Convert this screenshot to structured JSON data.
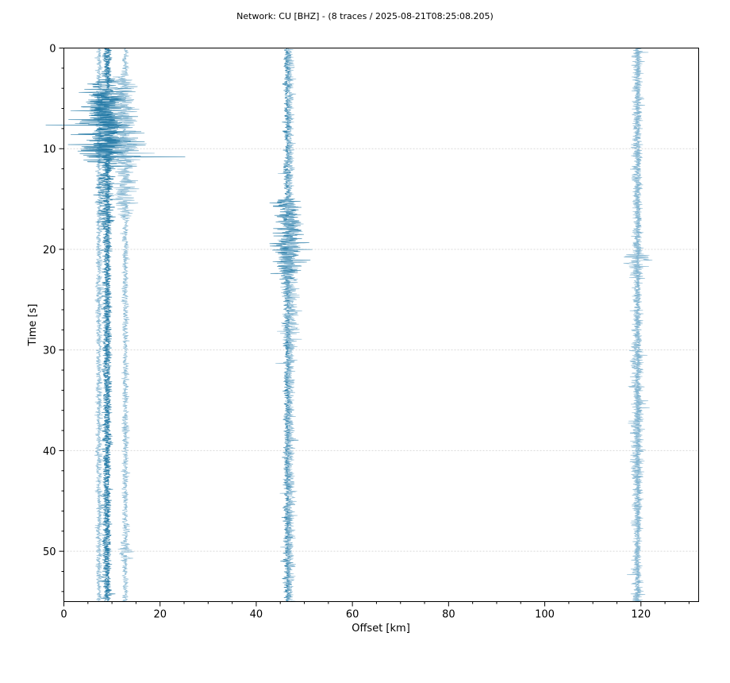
{
  "chart_data": {
    "type": "line",
    "title": "Network: CU [BHZ] - (8 traces / 2025-08-21T08:25:08.205)",
    "xlabel": "Offset [km]",
    "ylabel": "Time [s]",
    "xlim": [
      0,
      132
    ],
    "ylim": [
      55,
      0
    ],
    "y_inverted": true,
    "grid": "horizontal dashed at major y ticks",
    "xticks": [
      0,
      20,
      40,
      60,
      80,
      100,
      120
    ],
    "yticks": [
      0,
      10,
      20,
      30,
      40,
      50
    ],
    "colors": {
      "dark": "#1f77a4",
      "light": "#7fb3cf"
    },
    "series": [
      {
        "offset_km": 7.3,
        "color": "light",
        "amp": 1.0,
        "bursts": []
      },
      {
        "offset_km": 8.8,
        "color": "dark",
        "amp": 1.2,
        "bursts": [
          [
            3,
            12,
            9.5
          ],
          [
            12,
            18,
            3.2
          ]
        ]
      },
      {
        "offset_km": 9.2,
        "color": "dark",
        "amp": 1.1,
        "bursts": [
          [
            4,
            11,
            6
          ]
        ]
      },
      {
        "offset_km": 12.8,
        "color": "light",
        "amp": 1.0,
        "bursts": [
          [
            2.5,
            17,
            3.5
          ],
          [
            49,
            51,
            3
          ]
        ]
      },
      {
        "offset_km": 46.5,
        "color": "dark",
        "amp": 1.2,
        "bursts": [
          [
            14.8,
            23,
            5
          ]
        ]
      },
      {
        "offset_km": 47.0,
        "color": "light",
        "amp": 1.4,
        "bursts": [
          [
            14.8,
            30,
            3
          ],
          [
            30,
            53,
            1.6
          ]
        ]
      },
      {
        "offset_km": 119.2,
        "color": "light",
        "amp": 1.6,
        "bursts": [
          [
            20,
            23,
            4
          ],
          [
            30,
            45,
            2.2
          ],
          [
            47,
            53,
            1.6
          ]
        ]
      },
      {
        "offset_km": 119.4,
        "color": "light",
        "amp": 1.0,
        "bursts": []
      }
    ]
  }
}
